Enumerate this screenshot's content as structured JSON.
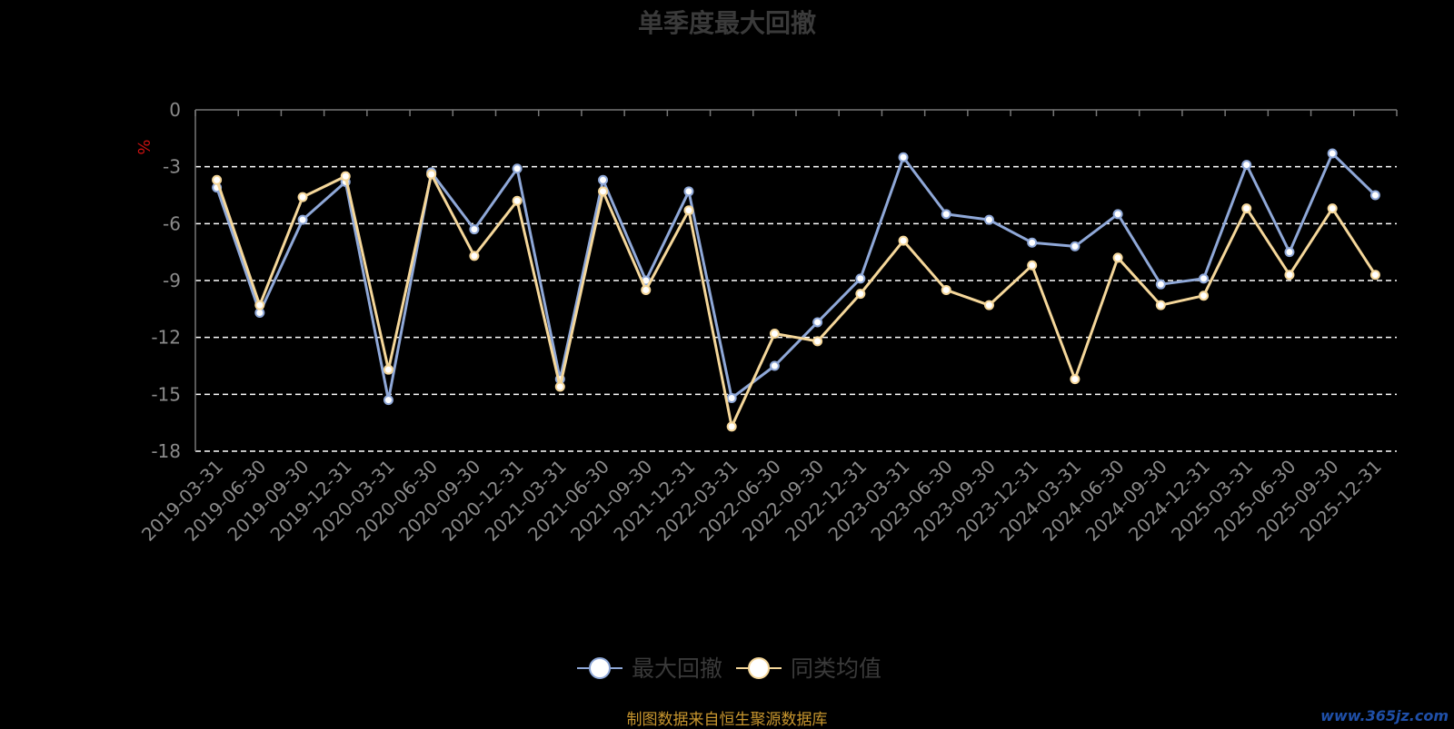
{
  "chart_data": {
    "type": "line",
    "title": "单季度最大回撤",
    "ylabel": "%",
    "ylim": [
      -18,
      0
    ],
    "yticks": [
      0,
      -3,
      -6,
      -9,
      -12,
      -15,
      -18
    ],
    "grid": true,
    "legend_position": "bottom-center",
    "categories": [
      "2019-03-31",
      "2019-06-30",
      "2019-09-30",
      "2019-12-31",
      "2020-03-31",
      "2020-06-30",
      "2020-09-30",
      "2020-12-31",
      "2021-03-31",
      "2021-06-30",
      "2021-09-30",
      "2021-12-31",
      "2022-03-31",
      "2022-06-30",
      "2022-09-30",
      "2022-12-31",
      "2023-03-31",
      "2023-06-30",
      "2023-09-30",
      "2023-12-31",
      "2024-03-31",
      "2024-06-30",
      "2024-09-30",
      "2024-12-31",
      "2025-03-31",
      "2025-06-30",
      "2025-09-30",
      "2025-12-31"
    ],
    "series": [
      {
        "name": "最大回撤",
        "color": "#8fa8d8",
        "values": [
          -4.1,
          -10.7,
          -5.8,
          -3.8,
          -15.3,
          -3.3,
          -6.3,
          -3.1,
          -14.2,
          -3.7,
          -9.0,
          -4.3,
          -15.2,
          -13.5,
          -11.2,
          -8.9,
          -2.5,
          -5.5,
          -5.8,
          -7.0,
          -7.2,
          -5.5,
          -9.2,
          -8.9,
          -2.9,
          -7.5,
          -2.3,
          -4.5
        ]
      },
      {
        "name": "同类均值",
        "color": "#f5d79a",
        "values": [
          -3.7,
          -10.3,
          -4.6,
          -3.5,
          -13.7,
          -3.4,
          -7.7,
          -4.8,
          -14.6,
          -4.3,
          -9.5,
          -5.3,
          -16.7,
          -11.8,
          -12.2,
          -9.7,
          -6.9,
          -9.5,
          -10.3,
          -8.2,
          -14.2,
          -7.8,
          -10.3,
          -9.8,
          -5.2,
          -8.7,
          -5.2,
          -8.7
        ]
      }
    ]
  },
  "footer": {
    "source_text": "制图数据来自恒生聚源数据库",
    "watermark": "www.365jz.com"
  }
}
